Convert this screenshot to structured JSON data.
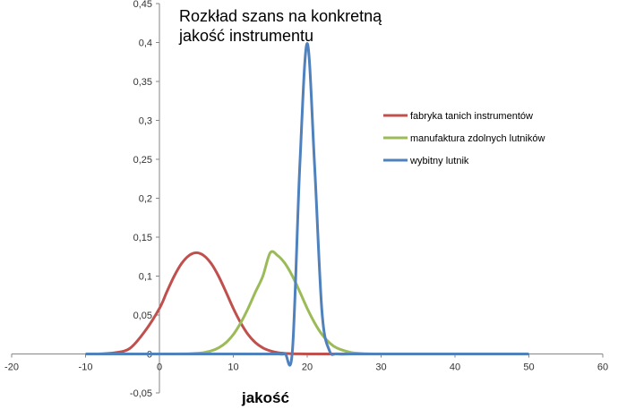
{
  "chart_data": {
    "type": "line",
    "title_lines": [
      "Rozkład szans na konkretną",
      "jakość instrumentu"
    ],
    "xlabel": "jakość",
    "ylabel": "",
    "xlim": [
      -20,
      60
    ],
    "ylim": [
      -0.05,
      0.45
    ],
    "x_ticks": [
      "-20",
      "-10",
      "0",
      "10",
      "20",
      "30",
      "40",
      "50",
      "60"
    ],
    "y_ticks": [
      "-0,05",
      "0",
      "0,05",
      "0,1",
      "0,15",
      "0,2",
      "0,25",
      "0,3",
      "0,35",
      "0,4",
      "0,45"
    ],
    "x_tick_values": [
      -20,
      -10,
      0,
      10,
      20,
      30,
      40,
      50,
      60
    ],
    "y_tick_values": [
      -0.05,
      0,
      0.05,
      0.1,
      0.15,
      0.2,
      0.25,
      0.3,
      0.35,
      0.4,
      0.45
    ],
    "grid": false,
    "legend_position": "right",
    "x": [
      -10,
      -8,
      -6,
      -4,
      -2,
      0,
      1,
      2,
      3,
      4,
      5,
      6,
      7,
      8,
      9,
      10,
      11,
      12,
      13,
      14,
      15,
      16,
      17,
      18,
      19,
      20,
      21,
      22,
      23,
      24,
      26,
      28,
      30,
      35,
      40,
      45,
      50
    ],
    "series": [
      {
        "name": "fabryka tanich instrumentów",
        "color": "#c0504d",
        "values": [
          0.0,
          0.0002,
          0.0016,
          0.0072,
          0.0287,
          0.0585,
          0.0797,
          0.1,
          0.1162,
          0.1264,
          0.13,
          0.1264,
          0.1162,
          0.1,
          0.0797,
          0.0585,
          0.04,
          0.025,
          0.0145,
          0.0078,
          0.0039,
          0.0017,
          0.0007,
          0.0003,
          0.0001,
          0.0,
          0.0,
          0.0,
          0.0,
          0.0,
          0.0,
          0.0,
          0.0,
          0.0,
          0.0,
          0.0,
          0.0
        ]
      },
      {
        "name": "manufaktura zdolnych lutników",
        "color": "#9bbb59",
        "values": [
          0.0,
          0.0,
          0.0,
          0.0,
          0.0,
          0.0,
          0.0,
          0.0,
          0.0001,
          0.0003,
          0.0008,
          0.0018,
          0.0039,
          0.0078,
          0.0145,
          0.025,
          0.04,
          0.0585,
          0.0797,
          0.1,
          0.13,
          0.1264,
          0.1162,
          0.1,
          0.0797,
          0.0585,
          0.04,
          0.025,
          0.0145,
          0.0078,
          0.0017,
          0.0003,
          0.0,
          0.0,
          0.0,
          0.0,
          0.0
        ]
      },
      {
        "name": "wybitny lutnik",
        "color": "#4f81bd",
        "values": [
          0.0,
          0.0,
          0.0,
          0.0,
          0.0,
          0.0,
          0.0,
          0.0,
          0.0,
          0.0,
          0.0,
          0.0,
          0.0,
          0.0,
          0.0,
          0.0,
          0.0,
          0.0,
          0.0,
          0.0,
          0.0,
          0.0,
          0.0001,
          0.0044,
          0.242,
          0.3989,
          0.242,
          0.054,
          0.0044,
          0.0001,
          0.0,
          0.0,
          0.0,
          0.0,
          0.0,
          0.0,
          0.0
        ]
      }
    ]
  }
}
